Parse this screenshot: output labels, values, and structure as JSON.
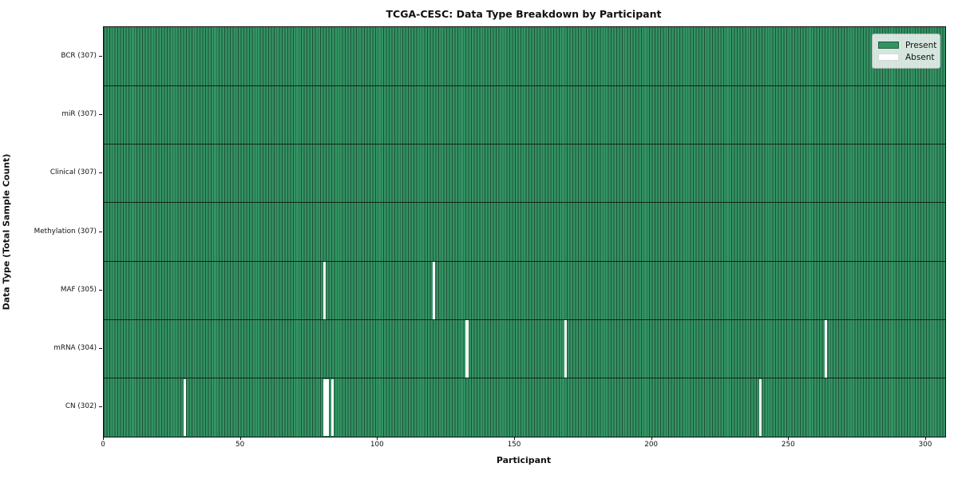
{
  "figure": {
    "title": "TCGA-CESC: Data Type Breakdown by Participant",
    "xlabel": "Participant",
    "ylabel": "Data Type (Total Sample Count)"
  },
  "legend": {
    "position": "upper-right",
    "items": [
      {
        "label": "Present",
        "color": "#339363"
      },
      {
        "label": "Absent",
        "color": "#ffffff"
      }
    ]
  },
  "colors": {
    "present": "#339363",
    "absent": "#ffffff",
    "cell_border": "#1f5038",
    "row_separator": "#10201750",
    "axis": "#111111",
    "legend_bg": "rgba(255,255,255,0.8)",
    "legend_border": "#b5b5b5"
  },
  "chart_data": {
    "type": "heatmap",
    "title": "TCGA-CESC: Data Type Breakdown by Participant",
    "xlabel": "Participant",
    "ylabel": "Data Type (Total Sample Count)",
    "x_range": [
      0,
      307
    ],
    "x_ticks": [
      0,
      50,
      100,
      150,
      200,
      250,
      300
    ],
    "n_participants": 307,
    "grid": false,
    "legend_position": "upper right",
    "legend_entries": [
      "Present",
      "Absent"
    ],
    "rows": [
      {
        "label": "BCR (307)",
        "data_type": "BCR",
        "total": 307,
        "absent_participants": []
      },
      {
        "label": "miR (307)",
        "data_type": "miR",
        "total": 307,
        "absent_participants": []
      },
      {
        "label": "Clinical (307)",
        "data_type": "Clinical",
        "total": 307,
        "absent_participants": []
      },
      {
        "label": "Methylation (307)",
        "data_type": "Methylation",
        "total": 307,
        "absent_participants": []
      },
      {
        "label": "MAF (305)",
        "data_type": "MAF",
        "total": 305,
        "absent_participants": [
          80,
          120
        ]
      },
      {
        "label": "mRNA (304)",
        "data_type": "mRNA",
        "total": 304,
        "absent_participants": [
          132,
          168,
          263
        ]
      },
      {
        "label": "CN (302)",
        "data_type": "CN",
        "total": 302,
        "absent_participants": [
          29,
          80,
          81,
          83,
          239
        ]
      }
    ]
  }
}
